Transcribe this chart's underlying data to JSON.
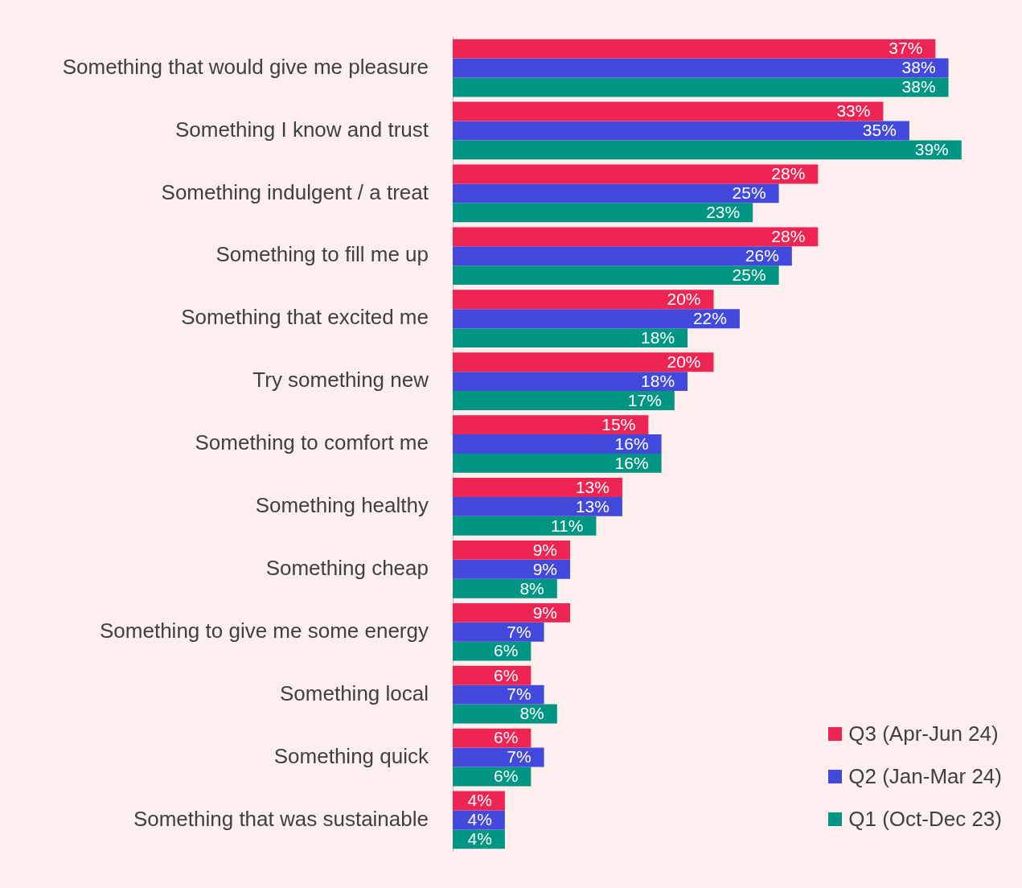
{
  "chart_data": {
    "type": "bar",
    "orientation": "horizontal",
    "legend": "bottom right",
    "categories": [
      "Something that would give me pleasure",
      "Something I know and trust",
      "Something indulgent / a treat",
      "Something to fill me up",
      "Something that excited me",
      "Try something new",
      "Something to comfort me",
      "Something healthy",
      "Something cheap",
      "Something to give me some energy",
      "Something local",
      "Something quick",
      "Something that was sustainable"
    ],
    "series": [
      {
        "name": "Q3 (Apr-Jun 24)",
        "color": "#ee2452",
        "values": [
          37,
          33,
          28,
          28,
          20,
          20,
          15,
          13,
          9,
          9,
          6,
          6,
          4
        ],
        "value_labels": [
          "37%",
          "33%",
          "28%",
          "28%",
          "20%",
          "20%",
          "15%",
          "13%",
          "9%",
          "9%",
          "6%",
          "6%",
          "4%"
        ]
      },
      {
        "name": "Q2 (Jan-Mar 24)",
        "color": "#4349dd",
        "values": [
          38,
          35,
          25,
          26,
          22,
          18,
          16,
          13,
          9,
          7,
          7,
          7,
          4
        ],
        "value_labels": [
          "38%",
          "35%",
          "25%",
          "26%",
          "22%",
          "18%",
          "16%",
          "13%",
          "9%",
          "7%",
          "7%",
          "7%",
          "4%"
        ]
      },
      {
        "name": "Q1 (Oct-Dec 23)",
        "color": "#009683",
        "values": [
          38,
          39,
          23,
          25,
          18,
          17,
          16,
          11,
          8,
          6,
          8,
          6,
          4
        ],
        "value_labels": [
          "38%",
          "39%",
          "23%",
          "25%",
          "18%",
          "17%",
          "16%",
          "11%",
          "8%",
          "6%",
          "8%",
          "6%",
          "4%"
        ]
      }
    ]
  }
}
